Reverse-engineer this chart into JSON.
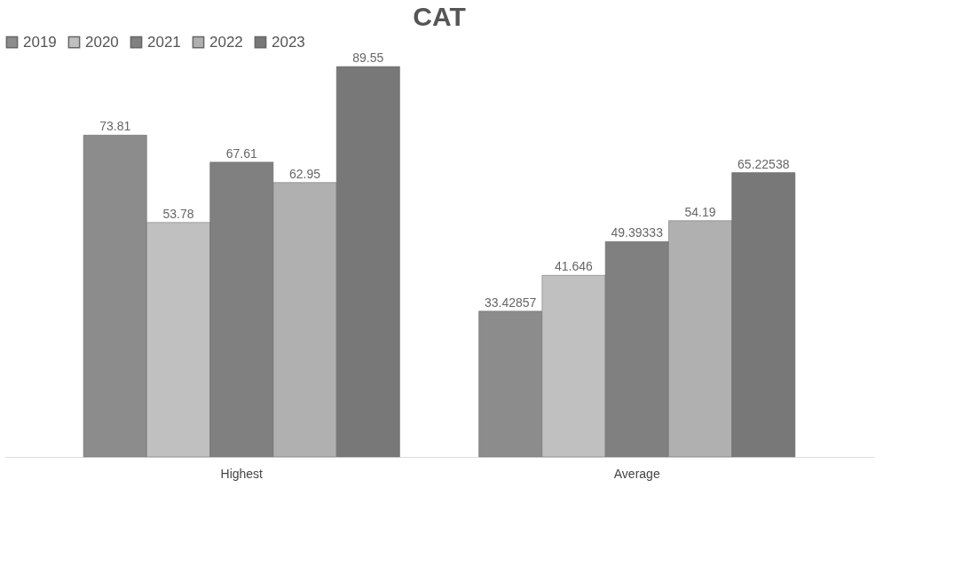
{
  "chart_data": {
    "type": "bar",
    "title": "CAT",
    "categories": [
      "Highest",
      "Average"
    ],
    "series": [
      {
        "name": "2019",
        "color": "#8c8c8c",
        "values": [
          73.81,
          33.42857
        ]
      },
      {
        "name": "2020",
        "color": "#c0c0c0",
        "values": [
          53.78,
          41.646
        ]
      },
      {
        "name": "2021",
        "color": "#808080",
        "values": [
          67.61,
          49.39333
        ]
      },
      {
        "name": "2022",
        "color": "#b0b0b0",
        "values": [
          62.95,
          54.19
        ]
      },
      {
        "name": "2023",
        "color": "#787878",
        "values": [
          89.55,
          65.22538
        ]
      }
    ],
    "data_labels": true,
    "legend": "top",
    "grid": false
  }
}
